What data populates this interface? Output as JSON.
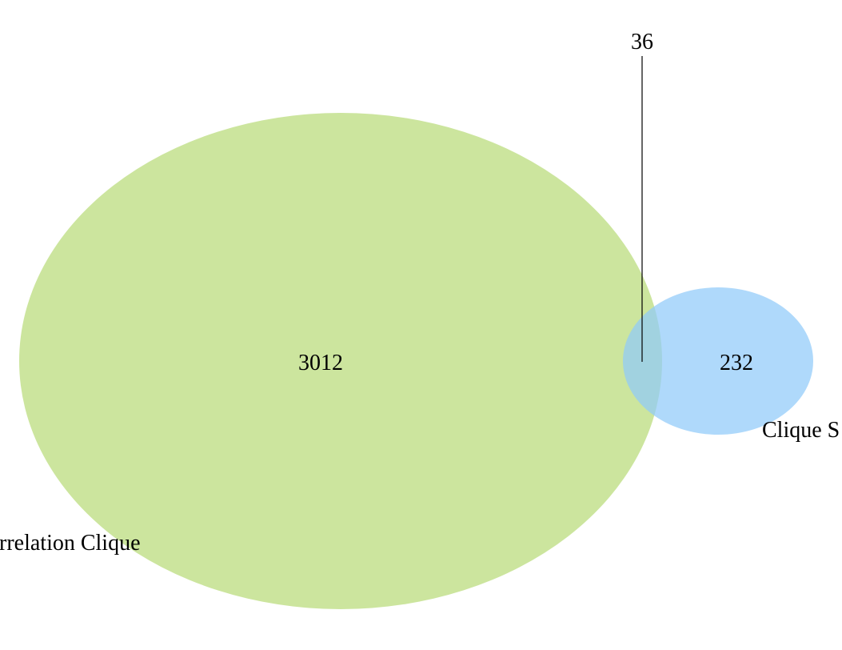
{
  "diagram": {
    "type": "venn",
    "sets": [
      {
        "label": "rrelation Clique",
        "only_count": "3012",
        "color": "#b9db78"
      },
      {
        "label": "Clique S",
        "only_count": "232",
        "color": "#90cbf9"
      }
    ],
    "intersection_count": "36"
  }
}
